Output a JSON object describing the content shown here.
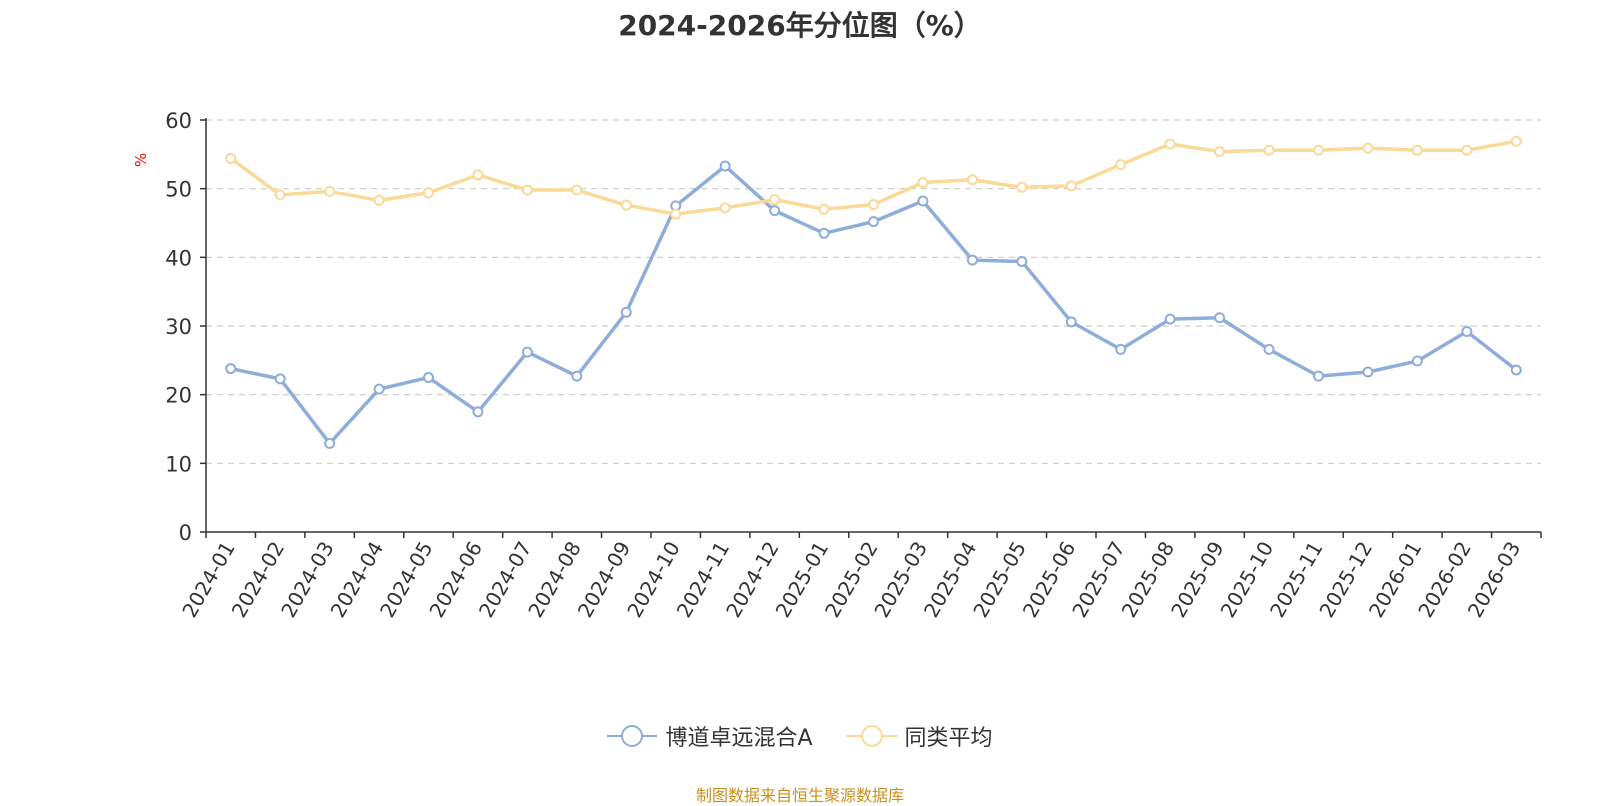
{
  "chart_data": {
    "type": "line",
    "title": "2024-2026年分位图（%）",
    "ylabel": "%",
    "xlabel": "",
    "ylim": [
      0,
      60
    ],
    "y_ticks": [
      0,
      10,
      20,
      30,
      40,
      50,
      60
    ],
    "grid": true,
    "legend_position": "bottom",
    "categories": [
      "2024-01",
      "2024-02",
      "2024-03",
      "2024-04",
      "2024-05",
      "2024-06",
      "2024-07",
      "2024-08",
      "2024-09",
      "2024-10",
      "2024-11",
      "2024-12",
      "2025-01",
      "2025-02",
      "2025-03",
      "2025-04",
      "2025-05",
      "2025-06",
      "2025-07",
      "2025-08",
      "2025-09",
      "2025-10",
      "2025-11",
      "2025-12",
      "2026-01",
      "2026-02",
      "2026-03"
    ],
    "series": [
      {
        "name": "博道卓远混合A",
        "color": "#8eadd9",
        "values": [
          23.8,
          22.3,
          12.9,
          20.8,
          22.5,
          17.5,
          26.2,
          22.7,
          32.0,
          47.5,
          53.3,
          46.8,
          43.5,
          45.2,
          48.2,
          39.6,
          39.4,
          30.6,
          26.6,
          31.0,
          31.2,
          26.6,
          22.7,
          23.3,
          24.9,
          29.2,
          23.6
        ]
      },
      {
        "name": "同类平均",
        "color": "#fbd996",
        "values": [
          54.4,
          49.1,
          49.6,
          48.3,
          49.4,
          52.0,
          49.8,
          49.8,
          47.6,
          46.3,
          47.2,
          48.4,
          47.0,
          47.7,
          50.9,
          51.3,
          50.2,
          50.4,
          53.5,
          56.5,
          55.4,
          55.6,
          55.6,
          55.9,
          55.6,
          55.6,
          56.9
        ]
      }
    ]
  },
  "source_note": "制图数据来自恒生聚源数据库"
}
